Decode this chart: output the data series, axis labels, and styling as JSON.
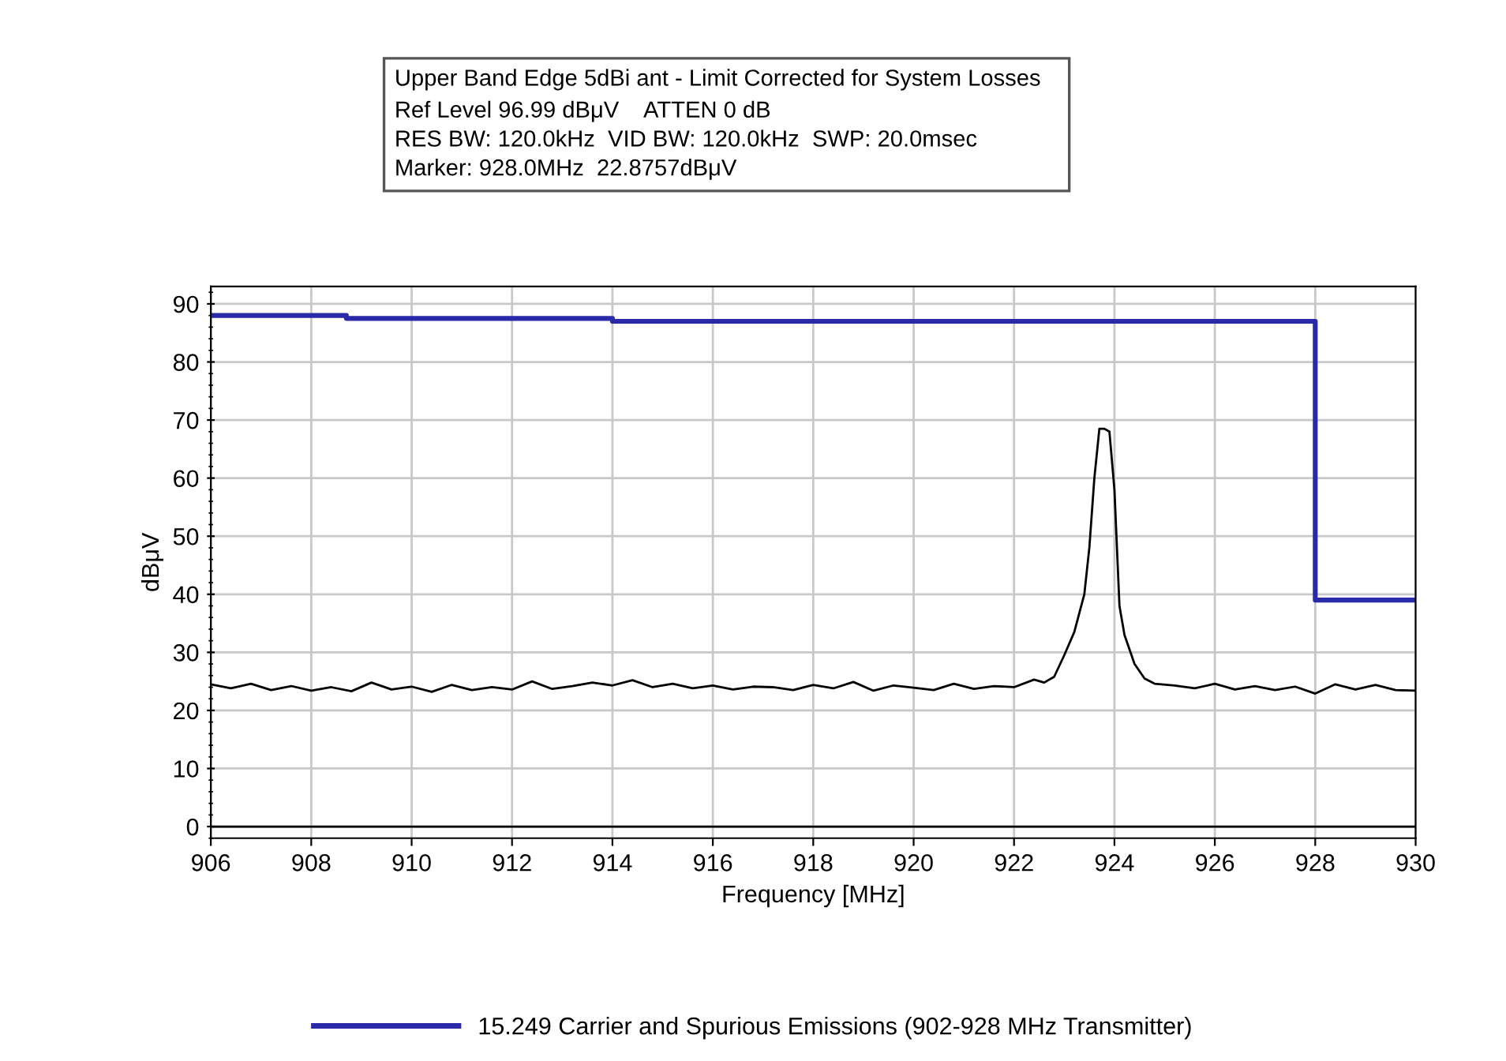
{
  "chart_data": {
    "type": "line",
    "title": "Upper Band Edge 5dBi ant - Limit Corrected for System Losses",
    "subtitle": "Ref Level 96.99 dBμV    ATTEN 0 dB\nRES BW: 120.0kHz  VID BW: 120.0kHz  SWP: 20.0msec\nMarker: 928.0MHz  22.8757dBμV",
    "xlabel": "Frequency [MHz]",
    "ylabel": "dBμV",
    "series": [
      {
        "color": "#000000",
        "x": [
          906,
          906.4,
          906.8,
          907.2,
          907.6,
          908,
          908.4,
          908.8,
          909.2,
          909.6,
          910,
          910.4,
          910.8,
          911.2,
          911.6,
          912,
          912.4,
          912.8,
          913.2,
          913.6,
          914,
          914.4,
          914.8,
          915.2,
          915.6,
          916,
          916.4,
          916.8,
          917.2,
          917.6,
          918,
          918.4,
          918.8,
          919.2,
          919.6,
          920,
          920.4,
          920.8,
          921.2,
          921.6,
          922,
          922.4,
          922.6,
          922.8,
          923,
          923.2,
          923.4,
          923.5,
          923.6,
          923.7,
          923.8,
          923.9,
          924,
          924.1,
          924.2,
          924.4,
          924.6,
          924.8,
          925.2,
          925.6,
          926,
          926.4,
          926.8,
          927.2,
          927.6,
          928,
          928.4,
          928.8,
          929.2,
          929.6,
          930
        ],
        "values": [
          24.5,
          23.8,
          24.6,
          23.5,
          24.2,
          23.4,
          24.0,
          23.3,
          24.8,
          23.6,
          24.1,
          23.2,
          24.4,
          23.5,
          24.0,
          23.6,
          25.0,
          23.7,
          24.2,
          24.8,
          24.3,
          25.2,
          24.0,
          24.6,
          23.8,
          24.3,
          23.6,
          24.1,
          24.0,
          23.5,
          24.4,
          23.8,
          24.9,
          23.4,
          24.3,
          23.9,
          23.5,
          24.6,
          23.7,
          24.2,
          24.0,
          25.3,
          24.8,
          25.8,
          29.5,
          33.5,
          40.0,
          48.0,
          60.0,
          68.5,
          68.5,
          68.0,
          58.0,
          38.0,
          33.0,
          28.0,
          25.5,
          24.6,
          24.3,
          23.8,
          24.6,
          23.6,
          24.2,
          23.5,
          24.1,
          22.9,
          24.5,
          23.6,
          24.4,
          23.5,
          23.4
        ]
      },
      {
        "type": "step",
        "name": "15.249 Carrier and Spurious Emissions (902-928 MHz Transmitter)",
        "color": "#2a2aa8",
        "x": [
          906,
          908.7,
          914,
          928,
          930
        ],
        "values": [
          88,
          87.5,
          87,
          39,
          39
        ]
      }
    ],
    "xlim": [
      906,
      930
    ],
    "xticks": [
      906,
      908,
      910,
      912,
      914,
      916,
      918,
      920,
      922,
      924,
      926,
      928,
      930
    ],
    "ylim": [
      -2,
      93
    ],
    "yticks": [
      0,
      10,
      20,
      30,
      40,
      50,
      60,
      70,
      80,
      90
    ],
    "grid": true,
    "legend": "bottom",
    "marker": "none",
    "line_style": "solid"
  }
}
